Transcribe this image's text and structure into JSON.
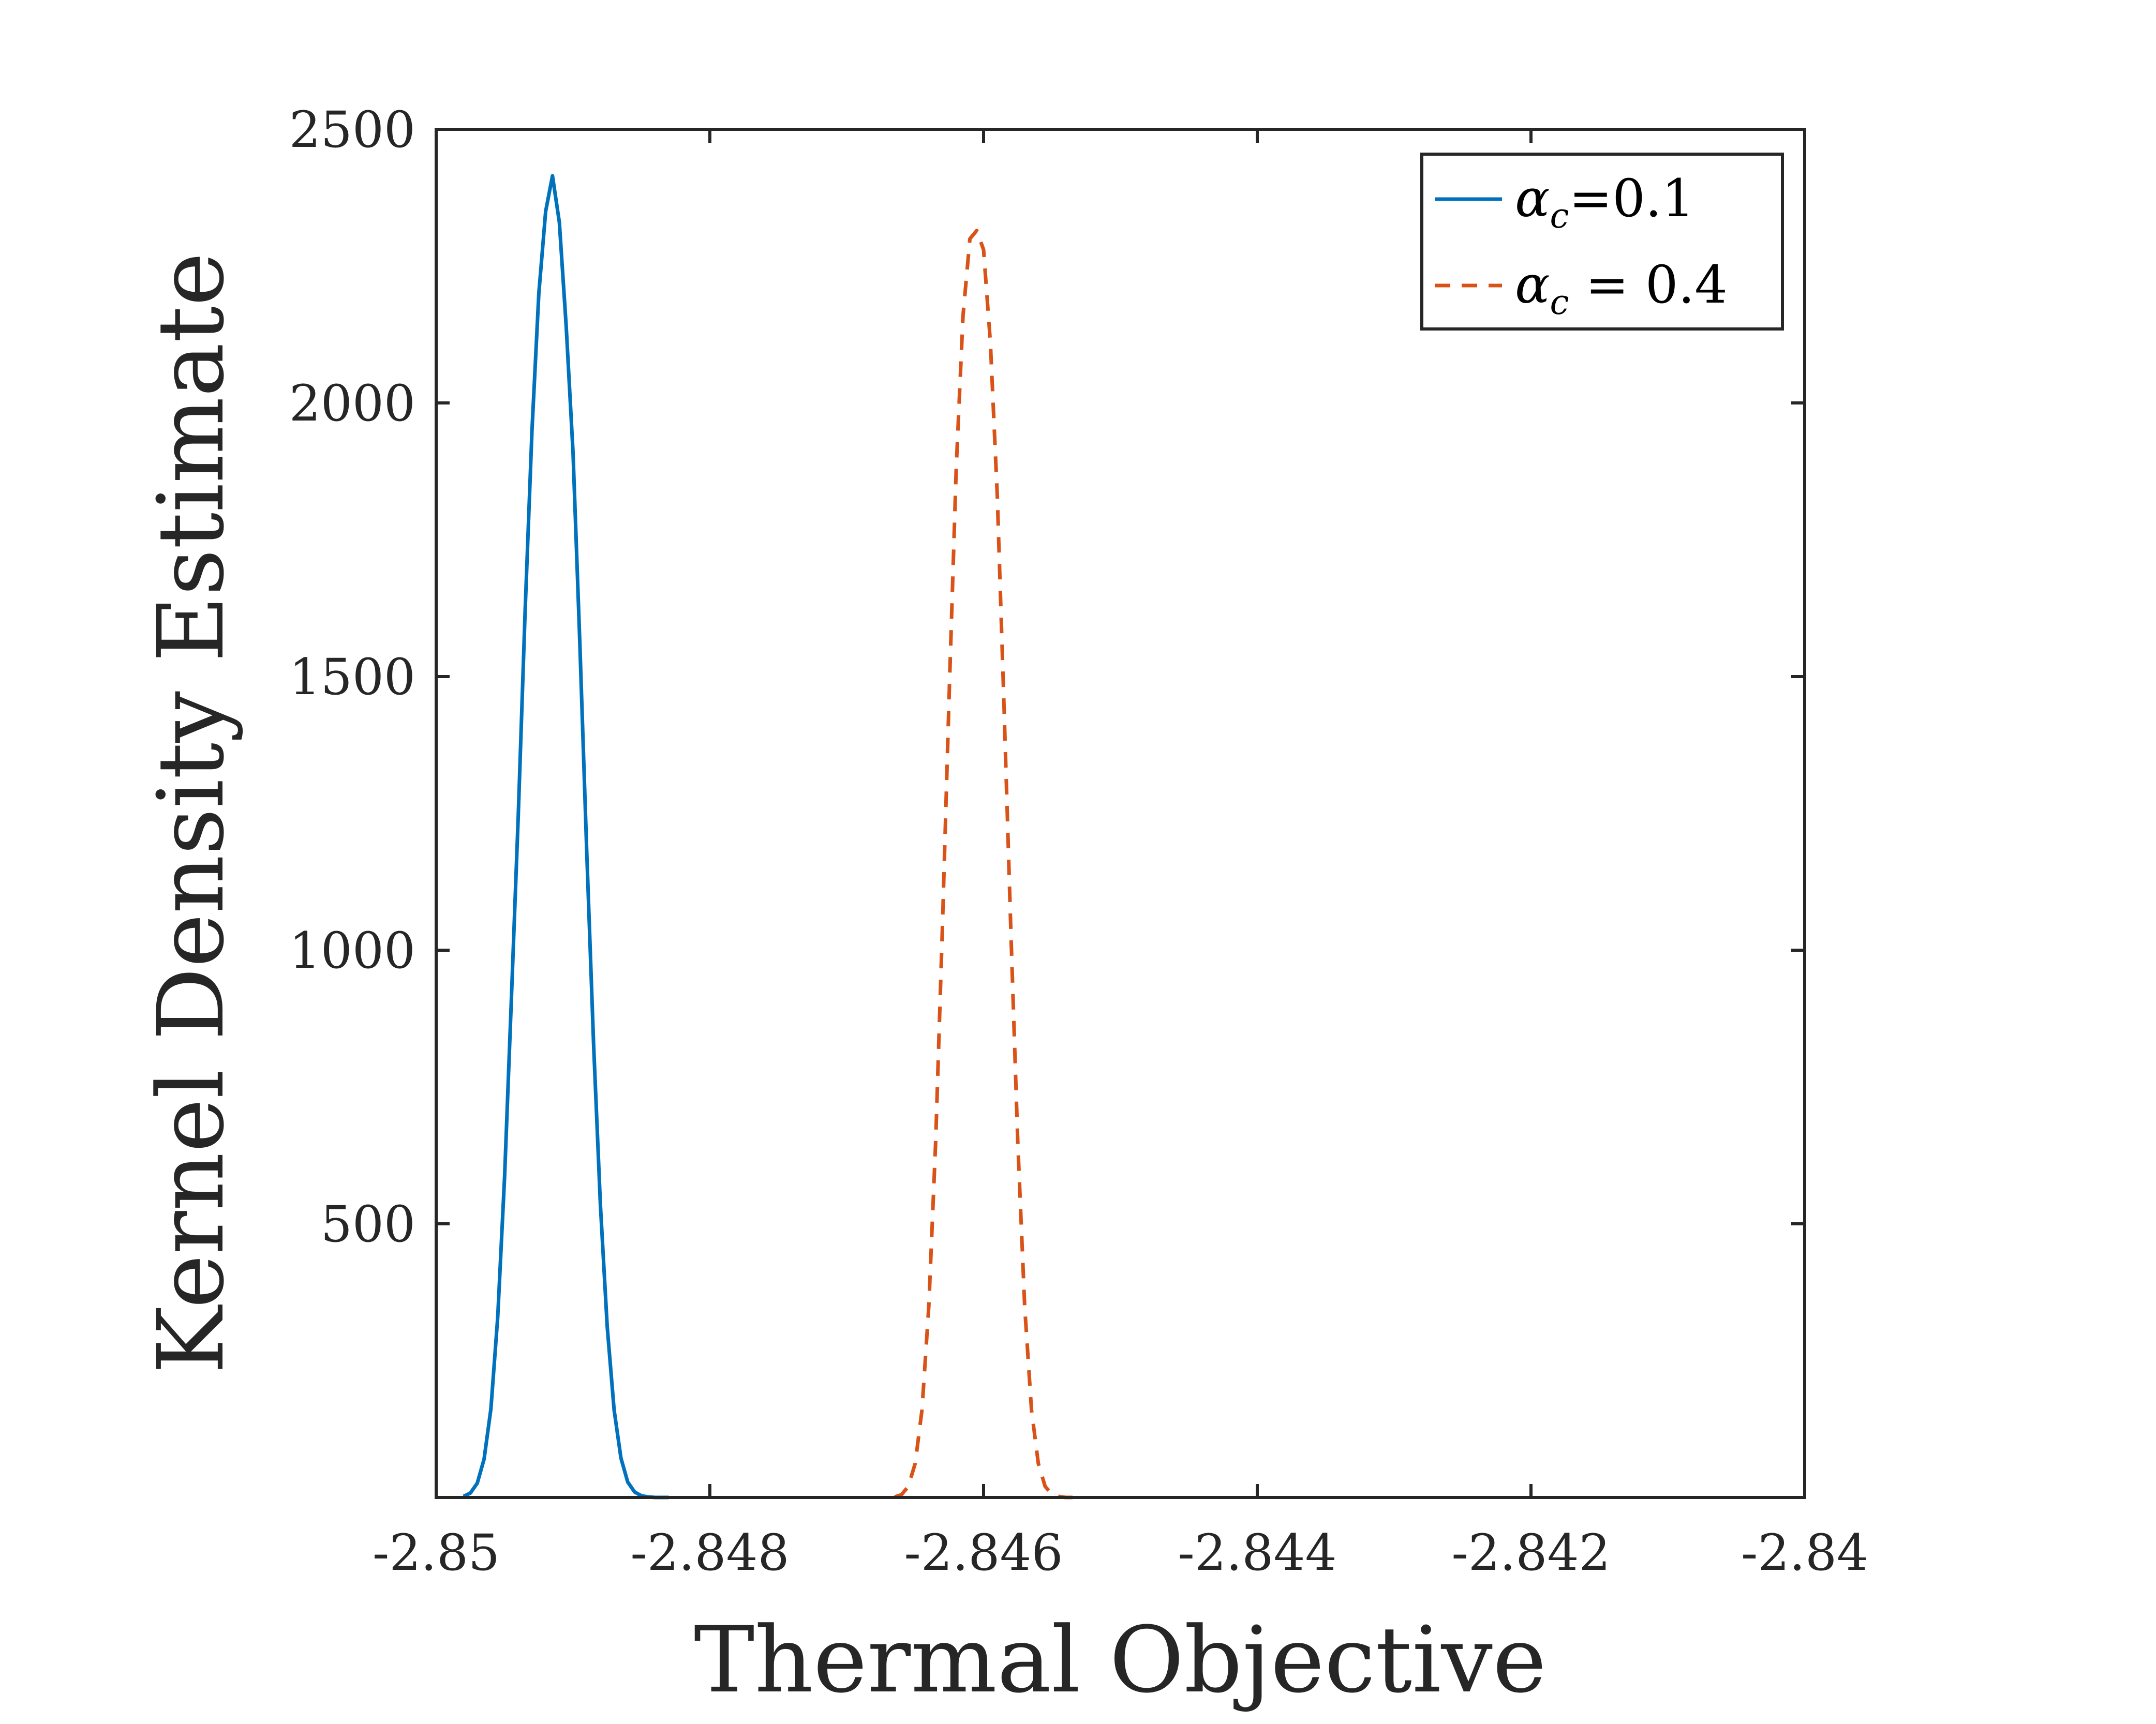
{
  "chart_data": {
    "type": "line",
    "title": "",
    "xlabel": "Thermal Objective",
    "ylabel": "Kernel Density Estimate",
    "xlim": [
      -2.85,
      -2.84
    ],
    "ylim": [
      0,
      2500
    ],
    "xticks": [
      -2.85,
      -2.848,
      -2.846,
      -2.844,
      -2.842,
      -2.84
    ],
    "xtick_labels": [
      "-2.85",
      "-2.848",
      "-2.846",
      "-2.844",
      "-2.842",
      "-2.84"
    ],
    "yticks": [
      500,
      1000,
      1500,
      2000,
      2500
    ],
    "ytick_labels": [
      "500",
      "1000",
      "1500",
      "2000",
      "2500"
    ],
    "grid": false,
    "legend_position": "top-right",
    "series": [
      {
        "name": "α_c=0.1",
        "legend": {
          "symbol": "α",
          "subscript": "c",
          "rest": "=0.1"
        },
        "color": "#0072BD",
        "line_style": "solid",
        "x": [
          -2.8498,
          -2.84975,
          -2.8497,
          -2.84965,
          -2.8496,
          -2.84955,
          -2.8495,
          -2.84945,
          -2.8494,
          -2.84935,
          -2.8493,
          -2.84925,
          -2.8492,
          -2.84915,
          -2.8491,
          -2.84905,
          -2.849,
          -2.84895,
          -2.8489,
          -2.84885,
          -2.8488,
          -2.84875,
          -2.8487,
          -2.84865,
          -2.8486,
          -2.84855,
          -2.8485,
          -2.84845,
          -2.8484,
          -2.84835,
          -2.8483
        ],
        "y": [
          2,
          8,
          26,
          70,
          162,
          330,
          587,
          914,
          1247,
          1619,
          1950,
          2200,
          2350,
          2415,
          2330,
          2140,
          1910,
          1560,
          1180,
          830,
          535,
          312,
          160,
          72,
          28,
          10,
          3,
          1,
          0,
          0,
          0
        ]
      },
      {
        "name": "α_c = 0.4",
        "legend": {
          "symbol": "α",
          "subscript": "c",
          "rest": " = 0.4"
        },
        "color": "#D95319",
        "line_style": "dashed",
        "x": [
          -2.84665,
          -2.8466,
          -2.84655,
          -2.8465,
          -2.84645,
          -2.8464,
          -2.84635,
          -2.8463,
          -2.84625,
          -2.8462,
          -2.84615,
          -2.8461,
          -2.84605,
          -2.846,
          -2.84595,
          -2.8459,
          -2.84585,
          -2.8458,
          -2.84575,
          -2.8457,
          -2.84565,
          -2.8456,
          -2.84555,
          -2.8455,
          -2.84545,
          -2.8454,
          -2.84535
        ],
        "y": [
          1,
          5,
          20,
          62,
          160,
          350,
          650,
          1050,
          1480,
          1880,
          2160,
          2300,
          2315,
          2280,
          2110,
          1830,
          1440,
          1030,
          650,
          350,
          160,
          62,
          20,
          6,
          2,
          0,
          0
        ]
      }
    ]
  }
}
